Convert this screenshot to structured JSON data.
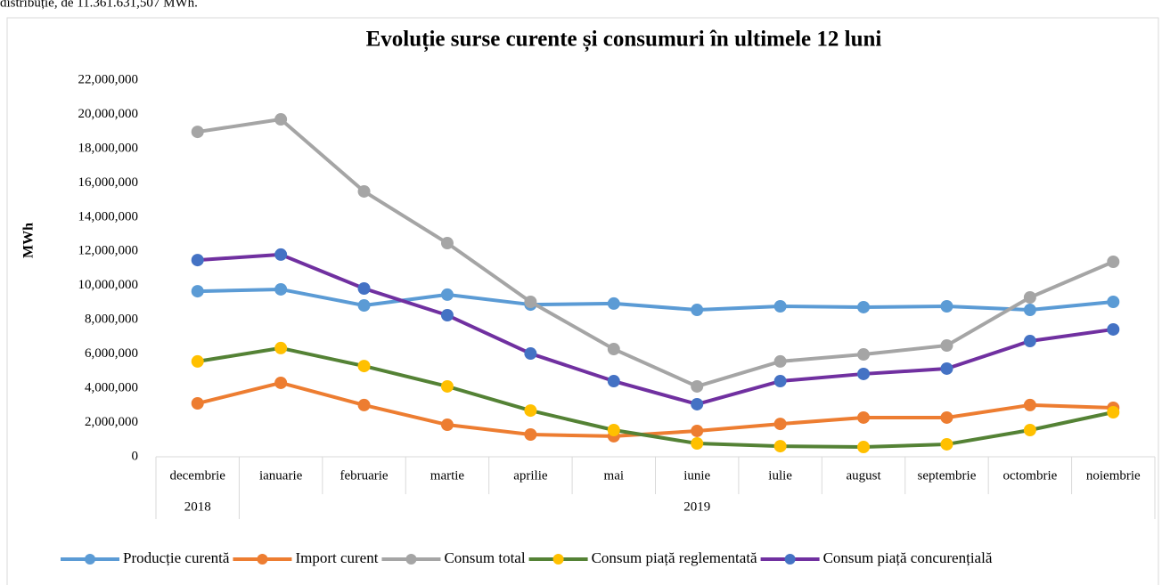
{
  "page_text": "distribuție, de 11.361.631,507 MWh.",
  "chart_data": {
    "type": "line",
    "title": "Evoluție surse curente și consumuri în ultimele 12 luni",
    "ylabel": "MWh",
    "categories": [
      "decembrie",
      "ianuarie",
      "februarie",
      "martie",
      "aprilie",
      "mai",
      "iunie",
      "iulie",
      "august",
      "septembrie",
      "octombrie",
      "noiembrie"
    ],
    "groups": [
      {
        "label": "2018",
        "span": 1
      },
      {
        "label": "2019",
        "span": 11
      }
    ],
    "ylim": [
      0,
      22000000
    ],
    "yticks": [
      0,
      {
        "value": 2000000,
        "label": "2,000,000"
      },
      {
        "value": 4000000,
        "label": "4,000,000"
      },
      {
        "value": 6000000,
        "label": "6,000,000"
      },
      {
        "value": 8000000,
        "label": "8,000,000"
      },
      {
        "value": 10000000,
        "label": "10,000,000"
      },
      {
        "value": 12000000,
        "label": "12,000,000"
      },
      {
        "value": 14000000,
        "label": "14,000,000"
      },
      {
        "value": 16000000,
        "label": "16,000,000"
      },
      {
        "value": 18000000,
        "label": "18,000,000"
      },
      {
        "value": 20000000,
        "label": "20,000,000"
      },
      {
        "value": 22000000,
        "label": "22,000,000"
      }
    ],
    "grid": false,
    "legend": "bottom",
    "series": [
      {
        "name": "Producție curentă",
        "color": "#5b9bd5",
        "marker_color": "#5b9bd5",
        "values": [
          9670000,
          9780000,
          8840000,
          9470000,
          8890000,
          8950000,
          8580000,
          8790000,
          8740000,
          8790000,
          8580000,
          9050000
        ]
      },
      {
        "name": "Import curent",
        "color": "#ed7d31",
        "marker_color": "#ed7d31",
        "values": [
          3120000,
          4320000,
          3020000,
          1870000,
          1300000,
          1200000,
          1510000,
          1920000,
          2290000,
          2290000,
          3020000,
          2860000
        ]
      },
      {
        "name": "Consum total",
        "color": "#a5a5a5",
        "marker_color": "#a5a5a5",
        "values": [
          18980000,
          19710000,
          15500000,
          12480000,
          9050000,
          6290000,
          4110000,
          5570000,
          5980000,
          6500000,
          9310000,
          11390000
        ]
      },
      {
        "name": "Consum piață reglementată",
        "color": "#548235",
        "marker_color": "#ffc000",
        "values": [
          5570000,
          6350000,
          5300000,
          4110000,
          2700000,
          1560000,
          780000,
          620000,
          570000,
          730000,
          1560000,
          2600000
        ]
      },
      {
        "name": "Consum piață concurențială",
        "color": "#7030a0",
        "marker_color": "#4472c4",
        "values": [
          11490000,
          11810000,
          9830000,
          8270000,
          6030000,
          4420000,
          3070000,
          4420000,
          4840000,
          5150000,
          6760000,
          7440000
        ]
      }
    ]
  }
}
